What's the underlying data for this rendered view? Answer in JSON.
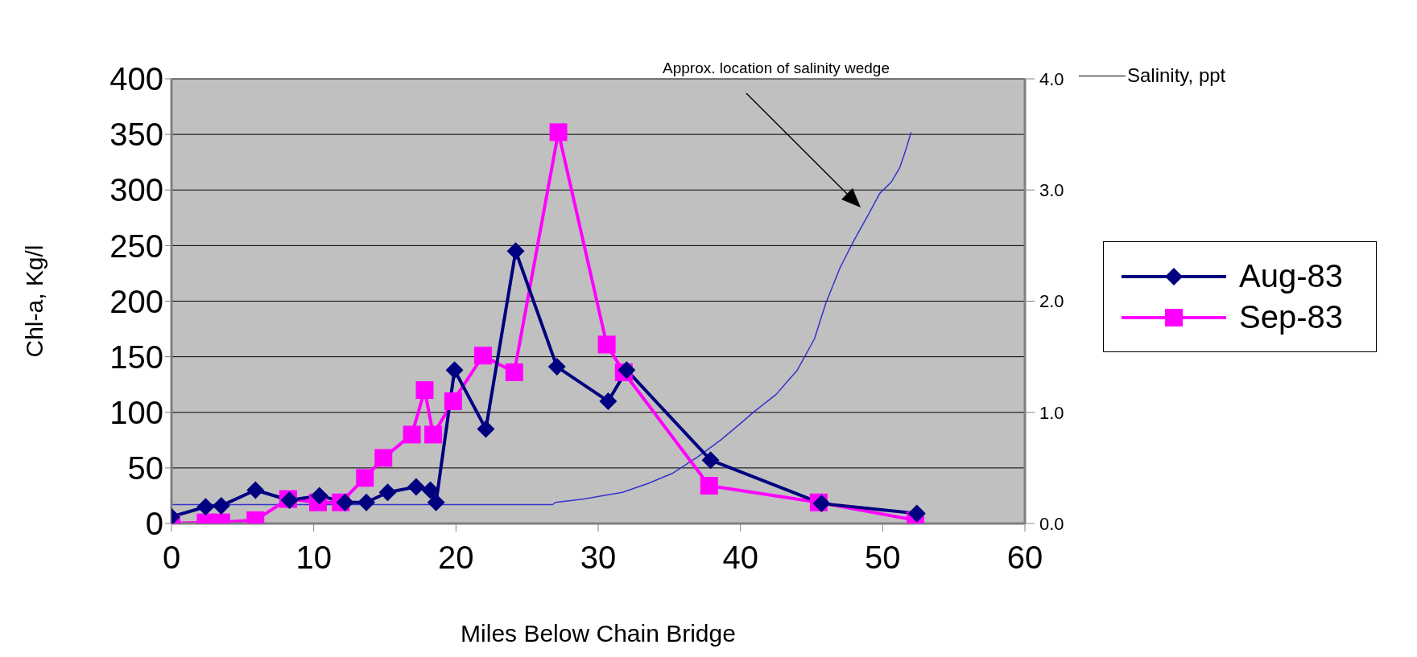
{
  "chart_data": {
    "type": "line",
    "xlabel": "Miles Below Chain Bridge",
    "ylabel": "Chl-a, Kg/l",
    "y2label": "Salinity, ppt",
    "annotations": [
      "Approx. location of salinity wedge"
    ],
    "xlim": [
      0,
      60
    ],
    "xticks": [
      0,
      10,
      20,
      30,
      40,
      50,
      60
    ],
    "ylim": [
      0,
      400
    ],
    "yticks": [
      0,
      50,
      100,
      150,
      200,
      250,
      300,
      350,
      400
    ],
    "y2lim": [
      0,
      4
    ],
    "y2ticks": [
      {
        "value": 0,
        "label": "0.0"
      },
      {
        "value": 1,
        "label": "1.0"
      },
      {
        "value": 2,
        "label": "2.0"
      },
      {
        "value": 3,
        "label": "3.0"
      },
      {
        "value": 4,
        "label": "4.0"
      }
    ],
    "grid": "y",
    "legend": "right",
    "line_style": "solid",
    "series": [
      {
        "name": "Aug-83",
        "color": "#000080",
        "marker": "diamond",
        "x": [
          0,
          2.4,
          3.5,
          5.9,
          8.3,
          10.4,
          12.2,
          13.7,
          15.2,
          17.2,
          18.2,
          18.6,
          19.9,
          22.1,
          24.2,
          27.1,
          30.7,
          32,
          37.9,
          45.7,
          52.4
        ],
        "values": [
          6,
          15,
          16,
          30,
          21,
          25,
          19,
          19,
          28,
          33,
          30,
          19,
          138,
          85,
          245,
          141,
          110,
          138,
          57,
          18,
          9
        ]
      },
      {
        "name": "Sep-83",
        "color": "#ff00ff",
        "marker": "square",
        "x": [
          0,
          2.4,
          3.5,
          5.9,
          8.2,
          10.3,
          11.9,
          13.6,
          14.9,
          16.9,
          17.8,
          18.4,
          19.8,
          21.9,
          24.1,
          27.2,
          30.6,
          31.8,
          37.8,
          45.5,
          52.3
        ],
        "values": [
          0,
          1,
          1,
          3,
          22,
          19,
          19,
          41,
          59,
          80,
          120,
          80,
          110,
          151,
          136,
          352,
          161,
          136,
          34,
          19,
          3
        ]
      },
      {
        "color": "#3333cc",
        "marker": "none",
        "axis": "y2",
        "x": [
          0,
          26.8,
          27,
          29,
          31.7,
          33.5,
          35.2,
          37,
          38.6,
          40,
          41,
          42.5,
          44,
          45.2,
          46,
          47,
          48,
          49,
          49.8,
          50.6,
          51.2,
          51.6,
          52
        ],
        "values": [
          0.17,
          0.17,
          0.19,
          0.22,
          0.28,
          0.36,
          0.45,
          0.6,
          0.75,
          0.9,
          1.01,
          1.16,
          1.38,
          1.66,
          1.98,
          2.3,
          2.55,
          2.78,
          2.97,
          3.07,
          3.2,
          3.35,
          3.52
        ]
      }
    ]
  }
}
